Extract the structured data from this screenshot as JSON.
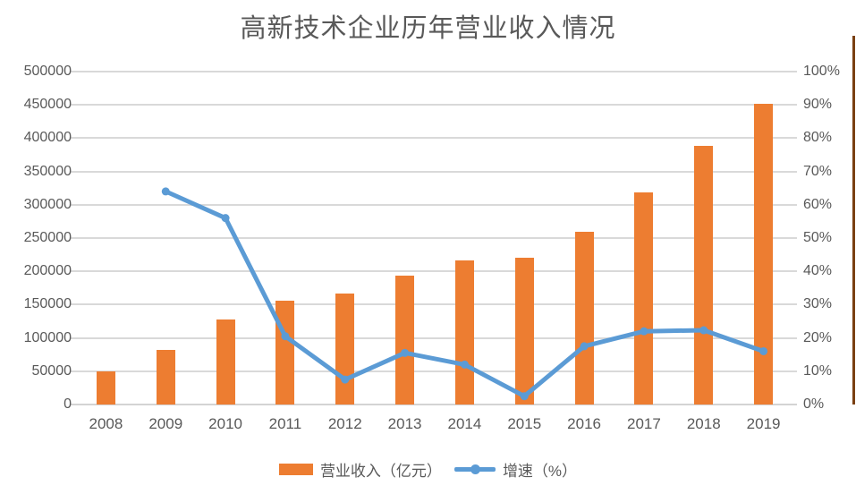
{
  "title": "高新技术企业历年营业收入情况",
  "colors": {
    "bar": "#ed7d31",
    "line": "#5b9bd5",
    "gridline": "#d9d9d9",
    "axis_text": "#595959",
    "title_text": "#595959",
    "right_edge_line": "#7a4012"
  },
  "chart_data": {
    "type": "bar",
    "subtype": "combo-bar-line-dual-axis",
    "title": "高新技术企业历年营业收入情况",
    "categories": [
      "2008",
      "2009",
      "2010",
      "2011",
      "2012",
      "2013",
      "2014",
      "2015",
      "2016",
      "2017",
      "2018",
      "2019"
    ],
    "series": [
      {
        "name": "营业收入（亿元）",
        "type": "bar",
        "axis": "left",
        "color": "#ed7d31",
        "values": [
          50000,
          82000,
          128000,
          156000,
          166000,
          193000,
          216000,
          221000,
          260000,
          318000,
          389000,
          451000
        ]
      },
      {
        "name": "增速（%）",
        "type": "line",
        "axis": "right",
        "color": "#5b9bd5",
        "values": [
          null,
          64,
          56,
          20.5,
          7.5,
          15.5,
          12,
          2.5,
          17.5,
          22,
          22.3,
          16
        ]
      }
    ],
    "left_axis": {
      "min": 0,
      "max": 500000,
      "step": 50000,
      "tick_labels": [
        "0",
        "50000",
        "100000",
        "150000",
        "200000",
        "250000",
        "300000",
        "350000",
        "400000",
        "450000",
        "500000"
      ]
    },
    "right_axis": {
      "min": 0,
      "max": 100,
      "step": 10,
      "tick_labels": [
        "0%",
        "10%",
        "20%",
        "30%",
        "40%",
        "50%",
        "60%",
        "70%",
        "80%",
        "90%",
        "100%"
      ]
    },
    "grid": true,
    "legend_position": "bottom"
  },
  "legend": {
    "revenue_label": "营业收入（亿元）",
    "growth_label": "增速（%）"
  }
}
